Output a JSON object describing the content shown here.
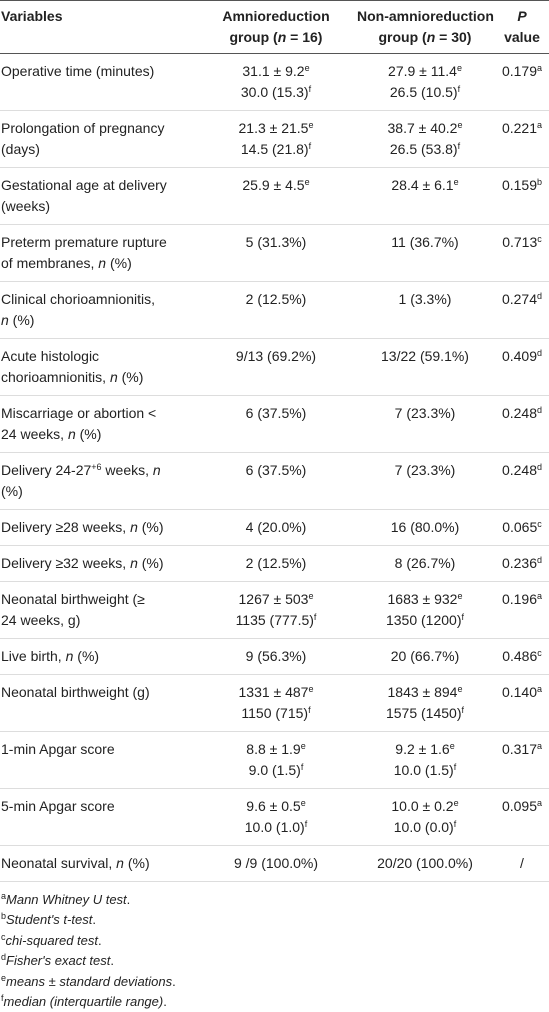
{
  "table": {
    "header": [
      [
        [
          "Variables"
        ]
      ],
      [
        [
          "Amnioreduction"
        ],
        [
          "group (",
          {
            "i": "n"
          },
          " = 16)"
        ]
      ],
      [
        [
          "Non-amnioreduction"
        ],
        [
          "group (",
          {
            "i": "n"
          },
          " = 30)"
        ]
      ],
      [
        [
          {
            "i": "P"
          }
        ],
        [
          "value"
        ]
      ]
    ],
    "rows": [
      [
        [
          [
            "Operative time (minutes)"
          ]
        ],
        [
          [
            "31.1 ± 9.2",
            {
              "sup": "e"
            }
          ],
          [
            "30.0 (15.3)",
            {
              "sup": "f"
            }
          ]
        ],
        [
          [
            "27.9 ± 11.4",
            {
              "sup": "e"
            }
          ],
          [
            "26.5 (10.5)",
            {
              "sup": "f"
            }
          ]
        ],
        [
          [
            "0.179",
            {
              "sup": "a"
            }
          ]
        ]
      ],
      [
        [
          [
            "Prolongation of pregnancy"
          ],
          [
            "(days)"
          ]
        ],
        [
          [
            "21.3 ± 21.5",
            {
              "sup": "e"
            }
          ],
          [
            "14.5 (21.8)",
            {
              "sup": "f"
            }
          ]
        ],
        [
          [
            "38.7 ± 40.2",
            {
              "sup": "e"
            }
          ],
          [
            "26.5 (53.8)",
            {
              "sup": "f"
            }
          ]
        ],
        [
          [
            "0.221",
            {
              "sup": "a"
            }
          ]
        ]
      ],
      [
        [
          [
            "Gestational age at delivery"
          ],
          [
            "(weeks)"
          ]
        ],
        [
          [
            "25.9 ± 4.5",
            {
              "sup": "e"
            }
          ]
        ],
        [
          [
            "28.4 ± 6.1",
            {
              "sup": "e"
            }
          ]
        ],
        [
          [
            "0.159",
            {
              "sup": "b"
            }
          ]
        ]
      ],
      [
        [
          [
            "Preterm premature rupture"
          ],
          [
            "of membranes, ",
            {
              "i": "n"
            },
            " (%)"
          ]
        ],
        [
          [
            "5 (31.3%)"
          ]
        ],
        [
          [
            "11 (36.7%)"
          ]
        ],
        [
          [
            "0.713",
            {
              "sup": "c"
            }
          ]
        ]
      ],
      [
        [
          [
            "Clinical chorioamnionitis,"
          ],
          [
            {
              "i": "n"
            },
            " (%)"
          ]
        ],
        [
          [
            "2 (12.5%)"
          ]
        ],
        [
          [
            "1 (3.3%)"
          ]
        ],
        [
          [
            "0.274",
            {
              "sup": "d"
            }
          ]
        ]
      ],
      [
        [
          [
            "Acute histologic"
          ],
          [
            "chorioamnionitis, ",
            {
              "i": "n"
            },
            " (%)"
          ]
        ],
        [
          [
            "9/13 (69.2%)"
          ]
        ],
        [
          [
            "13/22 (59.1%)"
          ]
        ],
        [
          [
            "0.409",
            {
              "sup": "d"
            }
          ]
        ]
      ],
      [
        [
          [
            "Miscarriage or abortion <"
          ],
          [
            "24 weeks, ",
            {
              "i": "n"
            },
            " (%)"
          ]
        ],
        [
          [
            "6 (37.5%)"
          ]
        ],
        [
          [
            "7 (23.3%)"
          ]
        ],
        [
          [
            "0.248",
            {
              "sup": "d"
            }
          ]
        ]
      ],
      [
        [
          [
            "Delivery 24-27",
            {
              "sup": "+6"
            },
            " weeks, ",
            {
              "i": "n"
            }
          ],
          [
            "(%)"
          ]
        ],
        [
          [
            "6 (37.5%)"
          ]
        ],
        [
          [
            "7 (23.3%)"
          ]
        ],
        [
          [
            "0.248",
            {
              "sup": "d"
            }
          ]
        ]
      ],
      [
        [
          [
            "Delivery ≥28 weeks, ",
            {
              "i": "n"
            },
            " (%)"
          ]
        ],
        [
          [
            "4 (20.0%)"
          ]
        ],
        [
          [
            "16 (80.0%)"
          ]
        ],
        [
          [
            "0.065",
            {
              "sup": "c"
            }
          ]
        ]
      ],
      [
        [
          [
            "Delivery ≥32 weeks, ",
            {
              "i": "n"
            },
            " (%)"
          ]
        ],
        [
          [
            "2 (12.5%)"
          ]
        ],
        [
          [
            "8 (26.7%)"
          ]
        ],
        [
          [
            "0.236",
            {
              "sup": "d"
            }
          ]
        ]
      ],
      [
        [
          [
            "Neonatal birthweight (≥"
          ],
          [
            "24 weeks, g)"
          ]
        ],
        [
          [
            "1267 ± 503",
            {
              "sup": "e"
            }
          ],
          [
            "1135 (777.5)",
            {
              "sup": "f"
            }
          ]
        ],
        [
          [
            "1683 ± 932",
            {
              "sup": "e"
            }
          ],
          [
            "1350 (1200)",
            {
              "sup": "f"
            }
          ]
        ],
        [
          [
            "0.196",
            {
              "sup": "a"
            }
          ]
        ]
      ],
      [
        [
          [
            "Live birth, ",
            {
              "i": "n"
            },
            " (%)"
          ]
        ],
        [
          [
            "9 (56.3%)"
          ]
        ],
        [
          [
            "20 (66.7%)"
          ]
        ],
        [
          [
            "0.486",
            {
              "sup": "c"
            }
          ]
        ]
      ],
      [
        [
          [
            "Neonatal birthweight (g)"
          ]
        ],
        [
          [
            "1331 ± 487",
            {
              "sup": "e"
            }
          ],
          [
            "1150 (715)",
            {
              "sup": "f"
            }
          ]
        ],
        [
          [
            "1843 ± 894",
            {
              "sup": "e"
            }
          ],
          [
            "1575 (1450)",
            {
              "sup": "f"
            }
          ]
        ],
        [
          [
            "0.140",
            {
              "sup": "a"
            }
          ]
        ]
      ],
      [
        [
          [
            "1-min Apgar score"
          ]
        ],
        [
          [
            "8.8 ± 1.9",
            {
              "sup": "e"
            }
          ],
          [
            "9.0 (1.5)",
            {
              "sup": "f"
            }
          ]
        ],
        [
          [
            "9.2 ± 1.6",
            {
              "sup": "e"
            }
          ],
          [
            "10.0 (1.5)",
            {
              "sup": "f"
            }
          ]
        ],
        [
          [
            "0.317",
            {
              "sup": "a"
            }
          ]
        ]
      ],
      [
        [
          [
            "5-min Apgar score"
          ]
        ],
        [
          [
            "9.6 ± 0.5",
            {
              "sup": "e"
            }
          ],
          [
            "10.0 (1.0)",
            {
              "sup": "f"
            }
          ]
        ],
        [
          [
            "10.0 ± 0.2",
            {
              "sup": "e"
            }
          ],
          [
            "10.0 (0.0)",
            {
              "sup": "f"
            }
          ]
        ],
        [
          [
            "0.095",
            {
              "sup": "a"
            }
          ]
        ]
      ],
      [
        [
          [
            "Neonatal survival, ",
            {
              "i": "n"
            },
            " (%)"
          ]
        ],
        [
          [
            "9 /9 (100.0%)"
          ]
        ],
        [
          [
            "20/20 (100.0%)"
          ]
        ],
        [
          [
            "/"
          ]
        ]
      ]
    ],
    "footnotes": [
      [
        {
          "sup": "a"
        },
        {
          "i": "Mann Whitney U test"
        },
        "."
      ],
      [
        {
          "sup": "b"
        },
        {
          "i": "Student's t-test"
        },
        "."
      ],
      [
        {
          "sup": "c"
        },
        {
          "i": "chi-squared test"
        },
        "."
      ],
      [
        {
          "sup": "d"
        },
        {
          "i": "Fisher's exact test"
        },
        "."
      ],
      [
        {
          "sup": "e"
        },
        {
          "i": "means ± standard deviations"
        },
        "."
      ],
      [
        {
          "sup": "f"
        },
        {
          "i": "median (interquartile range)"
        },
        "."
      ]
    ]
  }
}
